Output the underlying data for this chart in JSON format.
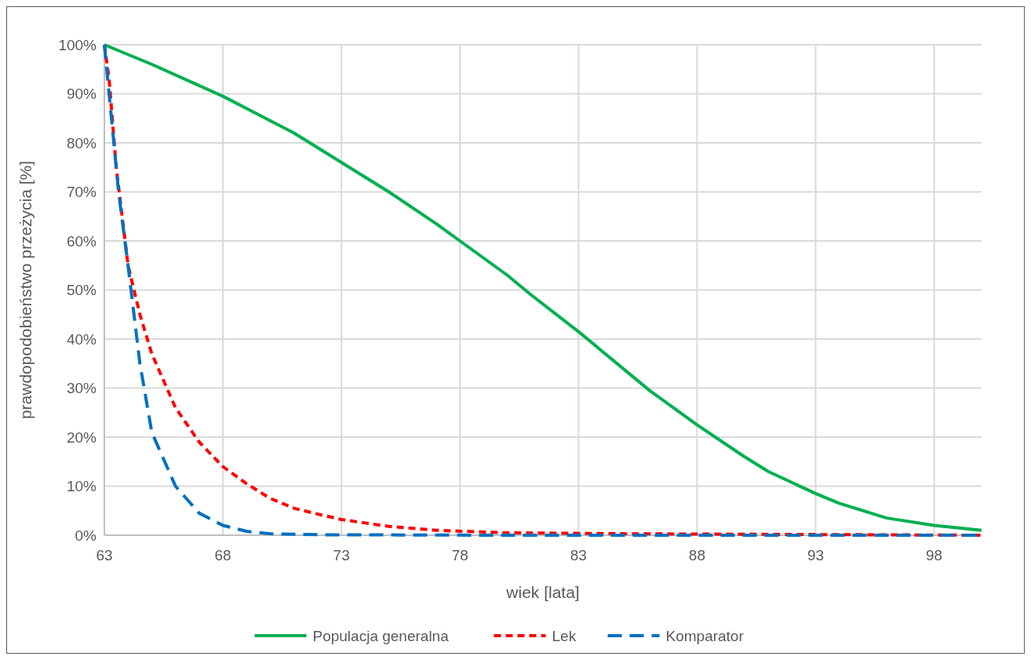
{
  "chart_data": {
    "type": "line",
    "xlabel": "wiek [lata]",
    "ylabel": "prawdopodobieństwo przeżycia [%]",
    "xlim": [
      63,
      100
    ],
    "xticks": [
      63,
      68,
      73,
      78,
      83,
      88,
      93,
      98
    ],
    "ylim": [
      0,
      100
    ],
    "yticks": [
      {
        "value": 0,
        "label": "0%"
      },
      {
        "value": 10,
        "label": "10%"
      },
      {
        "value": 20,
        "label": "20%"
      },
      {
        "value": 30,
        "label": "30%"
      },
      {
        "value": 40,
        "label": "40%"
      },
      {
        "value": 50,
        "label": "50%"
      },
      {
        "value": 60,
        "label": "60%"
      },
      {
        "value": 70,
        "label": "70%"
      },
      {
        "value": 80,
        "label": "80%"
      },
      {
        "value": 90,
        "label": "90%"
      },
      {
        "value": 100,
        "label": "100%"
      }
    ],
    "grid": true,
    "legend": "bottom",
    "series": [
      {
        "name": "Populacja generalna",
        "color": "#00b050",
        "line_style": "solid",
        "x": [
          63,
          65,
          68,
          69,
          71,
          73,
          75,
          77,
          78,
          80,
          81,
          83,
          85,
          86,
          88,
          90,
          91,
          93,
          94,
          96,
          98,
          100
        ],
        "values": [
          100,
          96,
          89.5,
          87,
          82,
          76,
          70,
          63.5,
          60,
          53,
          49,
          41.5,
          33.5,
          29.5,
          22.5,
          16,
          13,
          8.5,
          6.5,
          3.5,
          2,
          1
        ]
      },
      {
        "name": "Lek",
        "color": "#ff0000",
        "line_style": "dotted",
        "x": [
          63,
          63.2,
          63.5,
          64,
          64.5,
          65,
          66,
          67,
          68,
          69,
          70,
          71,
          72,
          73,
          74,
          75,
          77,
          80,
          85,
          90,
          95,
          100
        ],
        "values": [
          100,
          93,
          75,
          55,
          45,
          37,
          26,
          19,
          14,
          10.5,
          7.5,
          5.5,
          4.3,
          3.2,
          2.5,
          1.8,
          1,
          0.5,
          0.3,
          0.2,
          0.1,
          0
        ]
      },
      {
        "name": "Komparator",
        "color": "#0070c0",
        "line_style": "dashed",
        "x": [
          63,
          63.3,
          63.6,
          64,
          64.5,
          65,
          66,
          67,
          68,
          69,
          70,
          72,
          80,
          100
        ],
        "values": [
          100,
          85,
          70,
          55,
          35,
          21,
          10,
          4.5,
          2,
          0.8,
          0.3,
          0.1,
          0,
          0
        ]
      }
    ]
  }
}
